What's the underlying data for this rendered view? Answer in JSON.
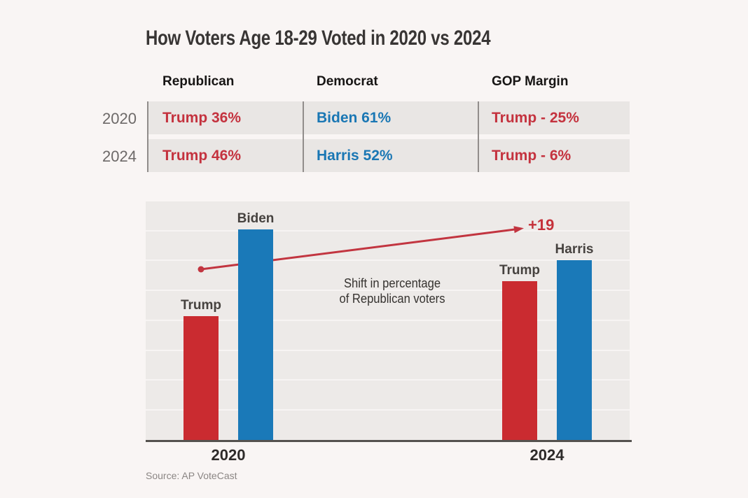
{
  "title": "How Voters Age 18-29 Voted in 2020 vs 2024",
  "table": {
    "columns": [
      "Republican",
      "Democrat",
      "GOP Margin"
    ],
    "rows": [
      {
        "year": "2020",
        "republican": "Trump 36%",
        "democrat": "Biden 61%",
        "gop_margin": "Trump - 25%"
      },
      {
        "year": "2024",
        "republican": "Trump 46%",
        "democrat": "Harris 52%",
        "gop_margin": "Trump - 6%"
      }
    ]
  },
  "chart_data": {
    "type": "bar",
    "categories": [
      "2020",
      "2024"
    ],
    "series": [
      {
        "name": "Republican",
        "labels": [
          "Trump",
          "Trump"
        ],
        "values": [
          36,
          46
        ],
        "color": "#ca2b30"
      },
      {
        "name": "Democrat",
        "labels": [
          "Biden",
          "Harris"
        ],
        "values": [
          61,
          52
        ],
        "color": "#1a79b8"
      }
    ],
    "title": "How Voters Age 18-29 Voted in 2020 vs 2024",
    "xlabel": "",
    "ylabel": "",
    "ylim": [
      0,
      69
    ],
    "grid": true,
    "legend": false,
    "annotations": {
      "arrow_label": "+19",
      "note_line1": "Shift in percentage",
      "note_line2": "of Republican voters",
      "arrow_color": "#c23540"
    }
  },
  "source": "Source: AP VoteCast"
}
